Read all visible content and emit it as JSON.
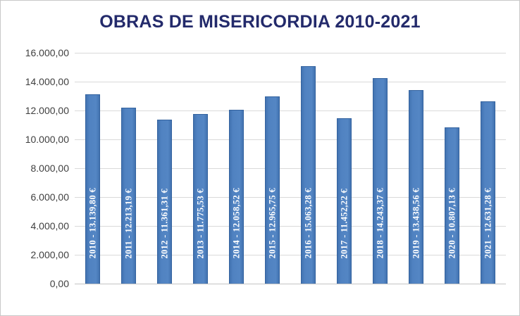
{
  "title": "OBRAS DE MISERICORDIA 2010-2021",
  "chart_data": {
    "type": "bar",
    "title": "OBRAS DE MISERICORDIA 2010-2021",
    "categories": [
      "2010",
      "2011",
      "2012",
      "2013",
      "2014",
      "2015",
      "2016",
      "2017",
      "2018",
      "2019",
      "2020",
      "2021"
    ],
    "values": [
      13139.8,
      12213.19,
      11361.31,
      11775.53,
      12058.52,
      12965.75,
      15063.28,
      11452.22,
      14243.37,
      13438.56,
      10807.13,
      12631.28
    ],
    "bar_labels": [
      "2010 - 13.139,80 €",
      "2011 - 12.213,19 €",
      "2012 - 11.361,31 €",
      "2013 - 11.775,53 €",
      "2014 - 12.058,52 €",
      "2015 - 12.965,75 €",
      "2016 - 15.063,28 €",
      "2017 - 11.452,22 €",
      "2018 - 14.243,37 €",
      "2019 - 13.438,56 €",
      "2020 - 10.807,13 €",
      "2021 - 12.631,28 €"
    ],
    "y_tick_labels_top_to_bottom": [
      "16.000,00",
      "14.000,00",
      "12.000,00",
      "10.000,00",
      "8.000,00",
      "6.000,00",
      "4.000,00",
      "2.000,00",
      "0,00"
    ],
    "ylim": [
      0,
      16000
    ],
    "y_tick_step": 2000,
    "xlabel": "",
    "ylabel": "",
    "grid": true,
    "legend_position": "none",
    "colors": {
      "bar_fill": "#4E81BD",
      "bar_border": "#34639F",
      "gridline": "#D9D9D9",
      "title_text": "#232A6B",
      "axis_text": "#3F3F3F",
      "bar_label_text": "#FFFFFF",
      "background": "#FFFFFF"
    }
  }
}
